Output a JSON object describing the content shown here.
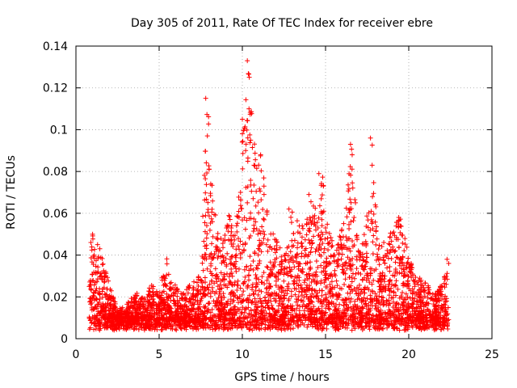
{
  "chart_data": {
    "type": "scatter",
    "title": "Day 305 of 2011, Rate Of TEC Index for receiver ebre",
    "xlabel": "GPS time / hours",
    "ylabel": "ROTI / TECUs",
    "xlim": [
      0,
      25
    ],
    "ylim": [
      0,
      0.14
    ],
    "x_ticks": [
      "0",
      "5",
      "10",
      "15",
      "20",
      "25"
    ],
    "y_ticks": [
      "0",
      "0.02",
      "0.04",
      "0.06",
      "0.08",
      "0.1",
      "0.12",
      "0.14"
    ],
    "grid": true,
    "marker": "+",
    "marker_color": "#ff0000",
    "envelope": {
      "x": [
        0.8,
        1.0,
        1.2,
        1.5,
        2.0,
        2.5,
        3.0,
        3.5,
        4.0,
        4.5,
        5.0,
        5.5,
        6.0,
        6.5,
        7.0,
        7.5,
        7.9,
        8.3,
        8.8,
        9.2,
        9.6,
        10.0,
        10.4,
        10.8,
        11.2,
        11.6,
        12.0,
        12.5,
        13.0,
        13.5,
        14.0,
        14.5,
        14.8,
        15.2,
        15.6,
        16.0,
        16.6,
        17.0,
        17.5,
        17.8,
        18.2,
        18.6,
        19.0,
        19.5,
        20.0,
        20.5,
        21.0,
        21.5,
        22.0,
        22.4
      ],
      "y": [
        0.025,
        0.05,
        0.04,
        0.044,
        0.026,
        0.014,
        0.016,
        0.023,
        0.02,
        0.026,
        0.024,
        0.04,
        0.025,
        0.022,
        0.028,
        0.032,
        0.118,
        0.064,
        0.045,
        0.06,
        0.052,
        0.102,
        0.133,
        0.085,
        0.09,
        0.054,
        0.048,
        0.04,
        0.062,
        0.054,
        0.068,
        0.063,
        0.08,
        0.053,
        0.04,
        0.055,
        0.093,
        0.04,
        0.062,
        0.096,
        0.048,
        0.04,
        0.054,
        0.058,
        0.04,
        0.03,
        0.027,
        0.022,
        0.026,
        0.038
      ]
    },
    "series": [
      {
        "x": [
          0.8,
          0.9,
          1.0,
          1.1,
          1.3,
          1.5,
          1.7,
          7.8,
          7.9,
          8.0,
          8.1,
          8.2,
          10.3,
          10.4,
          10.5,
          10.0,
          10.2,
          10.7,
          11.1,
          11.3,
          12.8,
          13.6,
          14.0,
          14.6,
          15.0,
          15.5,
          16.5,
          16.6,
          16.8,
          17.7,
          17.8,
          18.5,
          19.4,
          19.5,
          22.3,
          22.4
        ],
        "y": [
          0.025,
          0.046,
          0.05,
          0.04,
          0.045,
          0.03,
          0.027,
          0.115,
          0.097,
          0.081,
          0.074,
          0.056,
          0.133,
          0.11,
          0.095,
          0.105,
          0.09,
          0.083,
          0.088,
          0.073,
          0.062,
          0.054,
          0.069,
          0.079,
          0.053,
          0.04,
          0.093,
          0.088,
          0.065,
          0.096,
          0.083,
          0.046,
          0.058,
          0.054,
          0.038,
          0.036
        ]
      }
    ]
  }
}
